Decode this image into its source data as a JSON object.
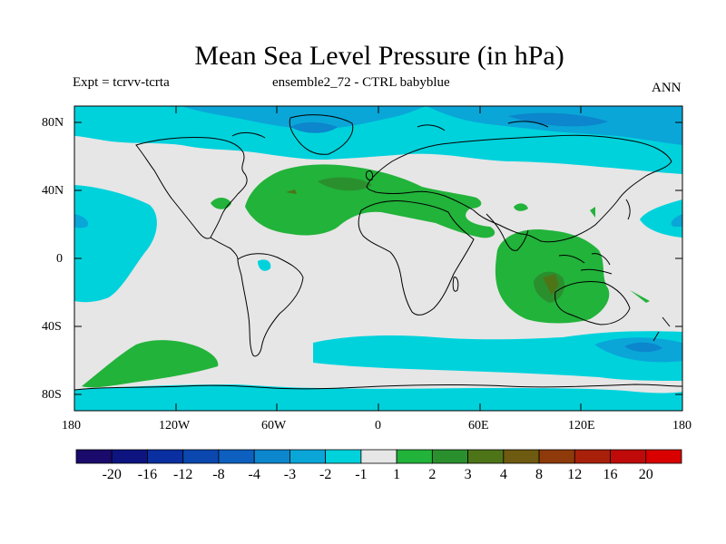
{
  "title": "Mean Sea Level Pressure (in hPa)",
  "expt_label": "Expt = tcrvv-tcrta",
  "ensemble_label": "ensemble2_72 - CTRL babyblue",
  "period_label": "ANN",
  "lat_ticks": [
    "80N",
    "40N",
    "0",
    "40S",
    "80S"
  ],
  "lon_ticks": [
    "180",
    "120W",
    "60W",
    "0",
    "60E",
    "120E",
    "180"
  ],
  "colorbar": {
    "labels": [
      "-20",
      "-16",
      "-12",
      "-8",
      "-4",
      "-3",
      "-2",
      "-1",
      "1",
      "2",
      "3",
      "4",
      "8",
      "12",
      "16",
      "20"
    ],
    "colors": [
      "#1a0a6b",
      "#0d1480",
      "#0a2fa0",
      "#0a48b0",
      "#0d60c0",
      "#0c86cc",
      "#0aa6d8",
      "#00d2dc",
      "#e6e6e6",
      "#22b33a",
      "#2a902e",
      "#4e7418",
      "#6e5a10",
      "#8e3a0a",
      "#a8200a",
      "#c00a0a",
      "#d90000"
    ]
  },
  "colors": {
    "background": "#e6e6e6",
    "neg1": "#00d2dc",
    "neg2": "#0aa6d8",
    "neg3": "#0c86cc",
    "pos1": "#22b33a",
    "pos2": "#2a902e",
    "pos3": "#4e7418"
  }
}
